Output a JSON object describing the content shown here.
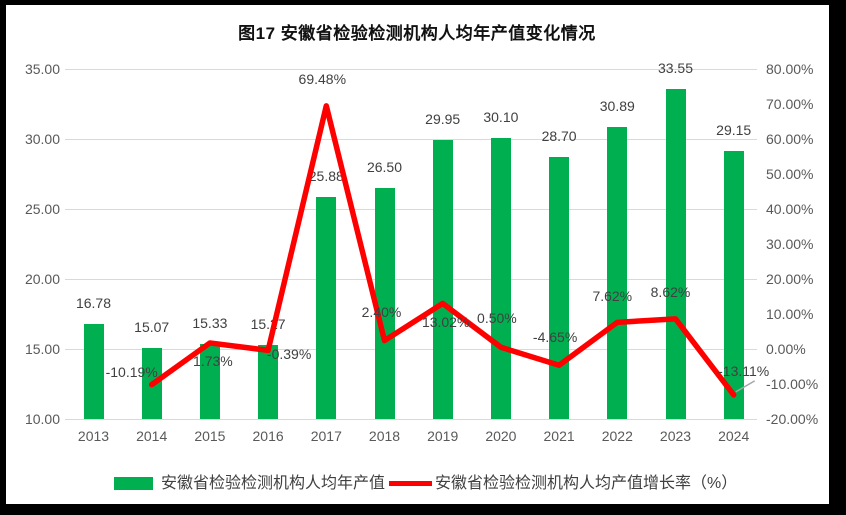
{
  "title": "图17 安徽省检验检测机构人均年产值变化情况",
  "legend": {
    "bar_label": "安徽省检验检测机构人均年产值",
    "line_label": "安徽省检验检测机构人均产值增长率（%）"
  },
  "colors": {
    "bar": "#00B050",
    "line": "#FF0000",
    "gridline": "#D9D9D9",
    "axis_text": "#595959",
    "data_label_text": "#404040",
    "leader_line": "#A6A6A6"
  },
  "chart_data": {
    "type": "bar",
    "subtype": "bar-line-combo",
    "title": "图17 安徽省检验检测机构人均年产值变化情况",
    "categories": [
      "2013",
      "2014",
      "2015",
      "2016",
      "2017",
      "2018",
      "2019",
      "2020",
      "2021",
      "2022",
      "2023",
      "2024"
    ],
    "series": [
      {
        "name": "安徽省检验检测机构人均年产值",
        "type": "bar",
        "axis": "left",
        "color": "#00B050",
        "values": [
          16.78,
          15.07,
          15.33,
          15.27,
          25.88,
          26.5,
          29.95,
          30.1,
          28.7,
          30.89,
          33.55,
          29.15
        ],
        "labels": [
          "16.78",
          "15.07",
          "15.33",
          "15.27",
          "25.88",
          "26.50",
          "29.95",
          "30.10",
          "28.70",
          "30.89",
          "33.55",
          "29.15"
        ]
      },
      {
        "name": "安徽省检验检测机构人均产值增长率（%）",
        "type": "line",
        "axis": "right",
        "color": "#FF0000",
        "values": [
          null,
          -10.19,
          1.73,
          -0.39,
          69.48,
          2.4,
          13.02,
          0.5,
          -4.65,
          7.62,
          8.62,
          -13.11
        ],
        "labels": [
          null,
          "-10.19%",
          "1.73%",
          "-0.39%",
          "69.48%",
          "2.40%",
          "13.02%",
          "0.50%",
          "-4.65%",
          "7.62%",
          "8.62%",
          "-13.11%"
        ]
      }
    ],
    "left_axis": {
      "min": 10,
      "max": 35,
      "ticks": [
        "35.00",
        "30.00",
        "25.00",
        "20.00",
        "15.00",
        "10.00"
      ],
      "tick_values": [
        35,
        30,
        25,
        20,
        15,
        10
      ]
    },
    "right_axis": {
      "min": -20,
      "max": 80,
      "ticks": [
        "80.00%",
        "70.00%",
        "60.00%",
        "50.00%",
        "40.00%",
        "30.00%",
        "20.00%",
        "10.00%",
        "0.00%",
        "-10.00%",
        "-20.00%"
      ],
      "tick_values": [
        80,
        70,
        60,
        50,
        40,
        30,
        20,
        10,
        0,
        -10,
        -20
      ]
    },
    "grid": true,
    "legend_position": "bottom"
  }
}
